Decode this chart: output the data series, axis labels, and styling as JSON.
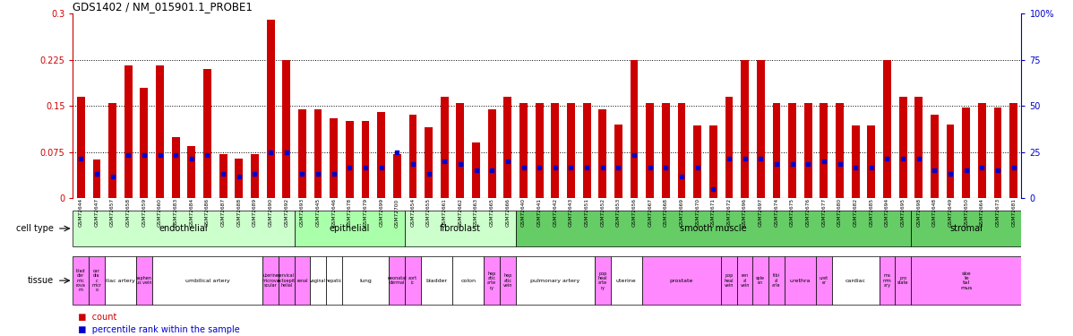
{
  "title": "GDS1402 / NM_015901.1_PROBE1",
  "samples": [
    "GSM72644",
    "GSM72647",
    "GSM72657",
    "GSM72658",
    "GSM72659",
    "GSM72660",
    "GSM72683",
    "GSM72684",
    "GSM72686",
    "GSM72687",
    "GSM72688",
    "GSM72689",
    "GSM72690",
    "GSM72692",
    "GSM72693",
    "GSM72645",
    "GSM72646",
    "GSM72678",
    "GSM72679",
    "GSM72699",
    "GSM72700",
    "GSM72654",
    "GSM72655",
    "GSM72661",
    "GSM72662",
    "GSM72663",
    "GSM72665",
    "GSM72666",
    "GSM72640",
    "GSM72641",
    "GSM72642",
    "GSM72643",
    "GSM72651",
    "GSM72652",
    "GSM72653",
    "GSM72656",
    "GSM72667",
    "GSM72668",
    "GSM72669",
    "GSM72670",
    "GSM72671",
    "GSM72672",
    "GSM72696",
    "GSM72697",
    "GSM72674",
    "GSM72675",
    "GSM72676",
    "GSM72677",
    "GSM72680",
    "GSM72682",
    "GSM72685",
    "GSM72694",
    "GSM72695",
    "GSM72698",
    "GSM72648",
    "GSM72649",
    "GSM72650",
    "GSM72664",
    "GSM72673",
    "GSM72681"
  ],
  "count_values": [
    0.165,
    0.063,
    0.155,
    0.215,
    0.18,
    0.215,
    0.1,
    0.085,
    0.21,
    0.072,
    0.065,
    0.072,
    0.29,
    0.225,
    0.145,
    0.145,
    0.13,
    0.125,
    0.125,
    0.14,
    0.072,
    0.135,
    0.115,
    0.165,
    0.155,
    0.09,
    0.145,
    0.165,
    0.155,
    0.155,
    0.155,
    0.155,
    0.155,
    0.145,
    0.12,
    0.225,
    0.155,
    0.155,
    0.155,
    0.118,
    0.118,
    0.165,
    0.225,
    0.225,
    0.155,
    0.155,
    0.155,
    0.155,
    0.155,
    0.118,
    0.118,
    0.225,
    0.165,
    0.165,
    0.135,
    0.12,
    0.148,
    0.155,
    0.148,
    0.155
  ],
  "percentile_values": [
    0.065,
    0.04,
    0.035,
    0.07,
    0.07,
    0.07,
    0.07,
    0.065,
    0.07,
    0.04,
    0.035,
    0.04,
    0.075,
    0.075,
    0.04,
    0.04,
    0.04,
    0.05,
    0.05,
    0.05,
    0.075,
    0.055,
    0.04,
    0.06,
    0.055,
    0.045,
    0.045,
    0.06,
    0.05,
    0.05,
    0.05,
    0.05,
    0.05,
    0.05,
    0.05,
    0.07,
    0.05,
    0.05,
    0.035,
    0.05,
    0.015,
    0.065,
    0.065,
    0.065,
    0.055,
    0.055,
    0.055,
    0.06,
    0.055,
    0.05,
    0.05,
    0.065,
    0.065,
    0.065,
    0.045,
    0.04,
    0.045,
    0.05,
    0.045,
    0.05
  ],
  "ylim_left": [
    0.0,
    0.3
  ],
  "ylim_right": [
    0,
    100
  ],
  "yticks_left": [
    0.0,
    0.075,
    0.15,
    0.225,
    0.3
  ],
  "ytick_labels_left": [
    "0",
    "0.075",
    "0.15",
    "0.225",
    "0.3"
  ],
  "yticks_right": [
    0,
    25,
    50,
    75,
    100
  ],
  "ytick_labels_right": [
    "0",
    "25",
    "50",
    "75",
    "100%"
  ],
  "hline_values": [
    0.075,
    0.15,
    0.225
  ],
  "cell_types": [
    {
      "label": "endothelial",
      "start": 0,
      "end": 14,
      "color": "#ccffcc"
    },
    {
      "label": "epithelial",
      "start": 14,
      "end": 21,
      "color": "#aaffaa"
    },
    {
      "label": "fibroblast",
      "start": 21,
      "end": 28,
      "color": "#ccffcc"
    },
    {
      "label": "smooth muscle",
      "start": 28,
      "end": 53,
      "color": "#66cc66"
    },
    {
      "label": "stromal",
      "start": 53,
      "end": 60,
      "color": "#66cc66"
    }
  ],
  "tissues": [
    {
      "label": "blad\nder\nmic\nrova\nm",
      "start": 0,
      "end": 1,
      "color": "#ff88ff"
    },
    {
      "label": "car\ndia\nc\nmicr\no",
      "start": 1,
      "end": 2,
      "color": "#ff88ff"
    },
    {
      "label": "iliac artery",
      "start": 2,
      "end": 4,
      "color": "#ffffff"
    },
    {
      "label": "saphen\nus vein",
      "start": 4,
      "end": 5,
      "color": "#ff88ff"
    },
    {
      "label": "umbilical artery",
      "start": 5,
      "end": 12,
      "color": "#ffffff"
    },
    {
      "label": "uterine\nmicrova\nscular",
      "start": 12,
      "end": 13,
      "color": "#ff88ff"
    },
    {
      "label": "cervical\nectoepit\nhelial",
      "start": 13,
      "end": 14,
      "color": "#ff88ff"
    },
    {
      "label": "renal",
      "start": 14,
      "end": 15,
      "color": "#ff88ff"
    },
    {
      "label": "vaginal",
      "start": 15,
      "end": 16,
      "color": "#ffffff"
    },
    {
      "label": "hepatic",
      "start": 16,
      "end": 17,
      "color": "#ffffff"
    },
    {
      "label": "lung",
      "start": 17,
      "end": 20,
      "color": "#ffffff"
    },
    {
      "label": "neonatal\ndermal",
      "start": 20,
      "end": 21,
      "color": "#ff88ff"
    },
    {
      "label": "aort\nic",
      "start": 21,
      "end": 22,
      "color": "#ff88ff"
    },
    {
      "label": "bladder",
      "start": 22,
      "end": 24,
      "color": "#ffffff"
    },
    {
      "label": "colon",
      "start": 24,
      "end": 26,
      "color": "#ffffff"
    },
    {
      "label": "hep\natic\narte\nry",
      "start": 26,
      "end": 27,
      "color": "#ff88ff"
    },
    {
      "label": "hep\natic\nvein",
      "start": 27,
      "end": 28,
      "color": "#ff88ff"
    },
    {
      "label": "pulmonary artery",
      "start": 28,
      "end": 33,
      "color": "#ffffff"
    },
    {
      "label": "pop\nheal\narte\nry",
      "start": 33,
      "end": 34,
      "color": "#ff88ff"
    },
    {
      "label": "uterine",
      "start": 34,
      "end": 36,
      "color": "#ffffff"
    },
    {
      "label": "prostate",
      "start": 36,
      "end": 41,
      "color": "#ff88ff"
    },
    {
      "label": "pop\nheal\nvein",
      "start": 41,
      "end": 42,
      "color": "#ff88ff"
    },
    {
      "label": "ren\nal\nvein",
      "start": 42,
      "end": 43,
      "color": "#ff88ff"
    },
    {
      "label": "sple\nen",
      "start": 43,
      "end": 44,
      "color": "#ff88ff"
    },
    {
      "label": "tibi\nal\narle",
      "start": 44,
      "end": 45,
      "color": "#ff88ff"
    },
    {
      "label": "urethra",
      "start": 45,
      "end": 47,
      "color": "#ff88ff"
    },
    {
      "label": "uret\ner",
      "start": 47,
      "end": 48,
      "color": "#ff88ff"
    },
    {
      "label": "cardiac",
      "start": 48,
      "end": 51,
      "color": "#ffffff"
    },
    {
      "label": "ma\nmm\nary",
      "start": 51,
      "end": 52,
      "color": "#ff88ff"
    },
    {
      "label": "pro\nstate",
      "start": 52,
      "end": 53,
      "color": "#ff88ff"
    },
    {
      "label": "ske\nle\ntal\nmus",
      "start": 53,
      "end": 60,
      "color": "#ff88ff"
    }
  ],
  "bar_color": "#cc0000",
  "percentile_color": "#0000cc",
  "background_color": "#ffffff",
  "left_axis_color": "#cc0000",
  "right_axis_color": "#0000cc",
  "cell_type_label": "cell type",
  "tissue_label": "tissue",
  "legend_count_label": "count",
  "legend_percentile_label": "percentile rank within the sample",
  "xtick_bg_color": "#cccccc"
}
